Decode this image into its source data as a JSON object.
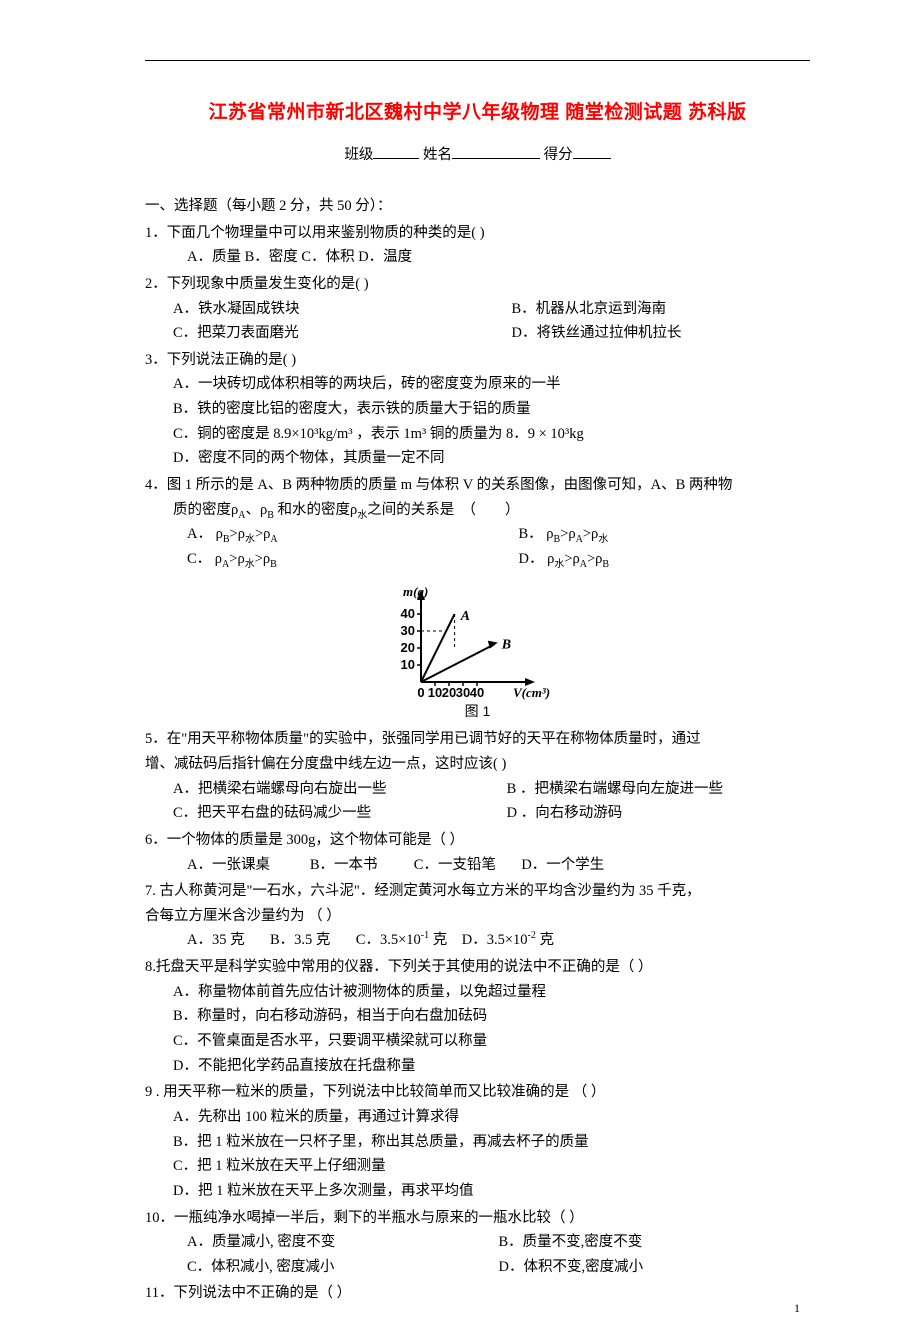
{
  "title": "江苏省常州市新北区魏村中学八年级物理 随堂检测试题 苏科版",
  "form": {
    "class_label": "班级",
    "name_label": "姓名",
    "score_label": "得分"
  },
  "section1_head": "一、选择题（每小题 2 分，共 50 分）：",
  "q1": {
    "stem": "1．下面几个物理量中可以用来鉴别物质的种类的是(        )",
    "opts": "A．质量     B．密度    C．体积    D．温度"
  },
  "q2": {
    "stem": "2．下列现象中质量发生变化的是(        )",
    "a": "A．铁水凝固成铁块",
    "b": "B．机器从北京运到海南",
    "c": "C．把菜刀表面磨光",
    "d": "D．将铁丝通过拉伸机拉长"
  },
  "q3": {
    "stem": "3．下列说法正确的是(        )",
    "a": "A．一块砖切成体积相等的两块后，砖的密度变为原来的一半",
    "b": "B．铁的密度比铝的密度大，表示铁的质量大于铝的质量",
    "c": "C．铜的密度是 8.9×10³kg/m³ ，表示 1m³ 铜的质量为 8．9  ×  10³kg",
    "d": "D．密度不同的两个物体，其质量一定不同"
  },
  "q4": {
    "stem1": "4．图 1 所示的是 A、B 两种物质的质量 m 与体积 V 的关系图像，由图像可知，A、B 两种物",
    "stem2": "质的密度ρA、ρB 和水的密度ρ水之间的关系是  (          )",
    "a": "A． ρB>ρ水>ρA",
    "b": "B． ρB>ρA>ρ水",
    "c": "C． ρA>ρ水>ρB",
    "d": "D． ρ水>ρA>ρB"
  },
  "chart": {
    "caption": "图 1",
    "y_label": "m(g)",
    "x_label": "V(cm³)",
    "y_ticks": [
      10,
      20,
      30,
      40
    ],
    "x_ticks": [
      0,
      10,
      20,
      30,
      40
    ],
    "series_A": {
      "label": "A",
      "x_end": 24,
      "y_end": 40
    },
    "series_B": {
      "label": "B",
      "x_end": 52,
      "y_end": 22
    },
    "axis_color": "#000000",
    "line_color": "#000000",
    "font_family": "Times New Roman, serif",
    "label_fontsize": 13
  },
  "q5": {
    "stem1": "5．在\"用天平称物体质量\"的实验中，张强同学用已调节好的天平在称物体质量时，通过",
    "stem2": "增、减砝码后指针偏在分度盘中线左边一点，这时应该(          )",
    "a": "A．把横梁右端螺母向右旋出一些",
    "b": "B ．把横梁右端螺母向左旋进一些",
    "c": "C．把天平右盘的砝码减少一些",
    "d": "D ．向右移动游码"
  },
  "q6": {
    "stem": "6．一个物体的质量是 300g，这个物体可能是（         ）",
    "opts": "A．一张课桌           B．一本书          C．一支铅笔       D．一个学生"
  },
  "q7": {
    "stem1": "7. 古人称黄河是\"一石水，六斗泥\"．经测定黄河水每立方米的平均含沙量约为 35 千克，",
    "stem2": "合每立方厘米含沙量约为  （          ）",
    "opts": "A．35 克       B．3.5 克       C．3.5×10⁻¹ 克    D．3.5×10⁻² 克"
  },
  "q8": {
    "stem": "8.托盘天平是科学实验中常用的仪器．下列关于其使用的说法中不正确的是（     ）",
    "a": "A．称量物体前首先应估计被测物体的质量，以免超过量程",
    "b": "B．称量时，向右移动游码，相当于向右盘加砝码",
    "c": "C．不管桌面是否水平，只要调平横梁就可以称量",
    "d": "D．不能把化学药品直接放在托盘称量"
  },
  "q9": {
    "stem": " 9 . 用天平称一粒米的质量，下列说法中比较简单而又比较准确的是  （          ）",
    "a": "A．先称出 100 粒米的质量，再通过计算求得",
    "b": "B．把 1 粒米放在一只杯子里，称出其总质量，再减去杯子的质量",
    "c": "C．把 1 粒米放在天平上仔细测量",
    "d": "D．把 1 粒米放在天平上多次测量，再求平均值"
  },
  "q10": {
    "stem": "10．一瓶纯净水喝掉一半后，剩下的半瓶水与原来的一瓶水比较（           ）",
    "a": "A．质量减小, 密度不变",
    "b": "B．质量不变,密度不变",
    "c": "C．体积减小, 密度减小",
    "d": "D．体积不变,密度减小"
  },
  "q11": {
    "stem": "11．下列说法中不正确的是（         ）"
  },
  "page_number": "1"
}
